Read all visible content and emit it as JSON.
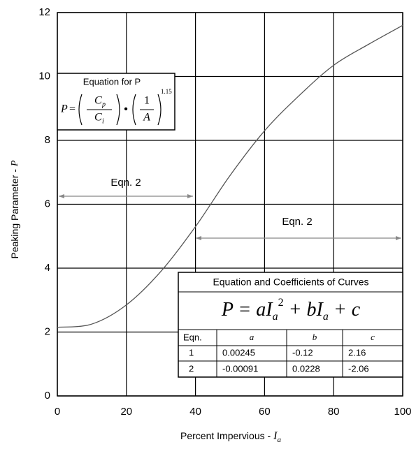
{
  "chart_data": {
    "type": "line",
    "x_label": "Percent Impervious -",
    "x_label_var": "I",
    "x_label_sub": "a",
    "y_label": "Peaking Parameter -",
    "y_label_var": "P",
    "x": [
      0,
      10,
      20,
      30,
      40,
      50,
      60,
      70,
      80,
      90,
      100
    ],
    "series": [
      {
        "color": "#555555",
        "values": [
          2.15,
          2.25,
          2.85,
          3.9,
          5.3,
          6.9,
          8.3,
          9.4,
          10.35,
          11.0,
          11.6
        ]
      }
    ],
    "xlim": [
      0,
      100
    ],
    "xticks": [
      0,
      20,
      40,
      60,
      80,
      100
    ],
    "ylim": [
      0,
      12
    ],
    "yticks": [
      0,
      2,
      4,
      6,
      8,
      10,
      12
    ],
    "grid": true,
    "annotations": [
      "Eqn. 2",
      "Eqn. 2"
    ],
    "equation_box": {
      "title": "Equation for P",
      "lhs": "P",
      "eq": "=",
      "num1": "C",
      "num1_sub": "p",
      "den1": "C",
      "den1_sub": "i",
      "dot": "•",
      "num2": "1",
      "den2": "A",
      "exponent": "1.15"
    },
    "coefficients_table": {
      "title": "Equation and Coefficients of Curves",
      "formula": [
        "P = aI",
        "a",
        "2",
        " + bI",
        "a",
        " + c"
      ],
      "header": [
        "Eqn.",
        "a",
        "b",
        "c"
      ],
      "rows": [
        [
          "1",
          "0.00245",
          "-0.12",
          "2.16"
        ],
        [
          "2",
          "-0.00091",
          "0.0228",
          "-2.06"
        ]
      ]
    }
  }
}
